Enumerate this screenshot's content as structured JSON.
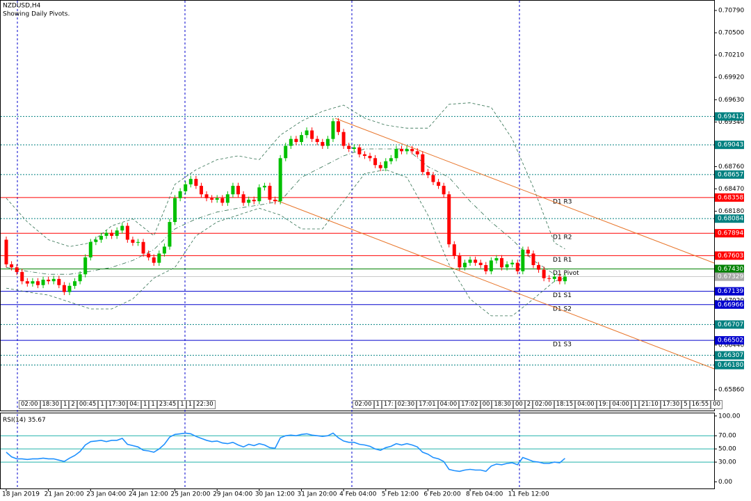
{
  "chart_data": [
    {
      "type": "candlestick",
      "title": "NZDUSD,H4",
      "subtitle": "Showing Daily Pivots.",
      "categories": [
        "18 Jan 2019",
        null,
        null,
        null,
        null,
        null,
        null,
        null,
        "21 Jan 20:00",
        null,
        null,
        null,
        null,
        null,
        null,
        null,
        "23 Jan 04:00",
        null,
        null,
        null,
        null,
        null,
        null,
        null,
        "24 Jan 12:00",
        null,
        null,
        null,
        null,
        null,
        null,
        null,
        "25 Jan 20:00",
        null,
        null,
        null,
        null,
        null,
        null,
        null,
        "29 Jan 04:00",
        null,
        null,
        null,
        null,
        null,
        null,
        null,
        "30 Jan 12:00",
        null,
        null,
        null,
        null,
        null,
        null,
        null,
        "31 Jan 20:00",
        null,
        null,
        null,
        null,
        null,
        null,
        null,
        "4 Feb 04:00",
        null,
        null,
        null,
        null,
        null,
        null,
        null,
        "5 Feb 12:00",
        null,
        null,
        null,
        null,
        null,
        null,
        null,
        "6 Feb 20:00",
        null,
        null,
        null,
        null,
        null,
        null,
        null,
        "8 Feb 04:00",
        null,
        null,
        null,
        null,
        null,
        null,
        null,
        "11 Feb 12:00",
        null,
        null,
        null,
        null,
        null,
        null,
        null,
        null,
        null,
        null
      ],
      "open": [
        0.6781,
        0.6749,
        0.6745,
        0.6739,
        0.6727,
        0.6724,
        0.6727,
        0.6722,
        0.6729,
        0.6727,
        0.673,
        0.6722,
        0.6713,
        0.6721,
        0.6727,
        0.6736,
        0.6758,
        0.6778,
        0.6781,
        0.6786,
        0.679,
        0.6786,
        0.6793,
        0.6799,
        0.6781,
        0.6777,
        0.6778,
        0.6763,
        0.6758,
        0.6751,
        0.6763,
        0.6772,
        0.6804,
        0.6835,
        0.6844,
        0.6853,
        0.686,
        0.6851,
        0.684,
        0.6835,
        0.6833,
        0.6835,
        0.6829,
        0.684,
        0.6851,
        0.684,
        0.6829,
        0.6833,
        0.6831,
        0.6849,
        0.6851,
        0.6833,
        0.6831,
        0.6887,
        0.6903,
        0.6912,
        0.6908,
        0.6917,
        0.6923,
        0.6912,
        0.6908,
        0.6903,
        0.6912,
        0.6935,
        0.6921,
        0.6903,
        0.6899,
        0.6901,
        0.6892,
        0.689,
        0.6887,
        0.6878,
        0.6874,
        0.6883,
        0.6887,
        0.6899,
        0.6896,
        0.6899,
        0.6896,
        0.6892,
        0.6869,
        0.6865,
        0.6856,
        0.6851,
        0.684,
        0.6775,
        0.676,
        0.6745,
        0.6751,
        0.6755,
        0.6751,
        0.6748,
        0.674,
        0.6754,
        0.6757,
        0.6745,
        0.6749,
        0.6751,
        0.674,
        0.6768,
        0.6763,
        0.6748,
        0.6742,
        0.6731,
        0.673,
        0.6733,
        0.6727
      ],
      "high": [
        0.6785,
        0.6753,
        0.6749,
        0.6743,
        0.6731,
        0.6731,
        0.6731,
        0.6733,
        0.6733,
        0.6734,
        0.6734,
        0.6726,
        0.6725,
        0.6731,
        0.674,
        0.6762,
        0.6782,
        0.6785,
        0.679,
        0.6794,
        0.6794,
        0.6797,
        0.6803,
        0.6803,
        0.6785,
        0.6782,
        0.6782,
        0.6767,
        0.6762,
        0.6767,
        0.6776,
        0.6808,
        0.6839,
        0.6848,
        0.6857,
        0.6864,
        0.6864,
        0.6855,
        0.6844,
        0.6839,
        0.6839,
        0.6839,
        0.6844,
        0.6855,
        0.6855,
        0.6844,
        0.6837,
        0.6837,
        0.6853,
        0.6855,
        0.6855,
        0.6837,
        0.6891,
        0.6907,
        0.6916,
        0.6916,
        0.6921,
        0.6927,
        0.6927,
        0.6916,
        0.6912,
        0.6916,
        0.6939,
        0.6939,
        0.6925,
        0.6907,
        0.6905,
        0.6905,
        0.6896,
        0.6894,
        0.6891,
        0.6882,
        0.6887,
        0.6891,
        0.6903,
        0.6903,
        0.6903,
        0.6903,
        0.69,
        0.6896,
        0.6873,
        0.6869,
        0.686,
        0.6855,
        0.6844,
        0.6779,
        0.6764,
        0.6755,
        0.6759,
        0.6759,
        0.6755,
        0.6752,
        0.6758,
        0.6761,
        0.6761,
        0.6753,
        0.6755,
        0.6755,
        0.6772,
        0.6772,
        0.6767,
        0.6752,
        0.6746,
        0.6735,
        0.6737,
        0.6737,
        0.6737
      ],
      "low": [
        0.6745,
        0.6741,
        0.6735,
        0.6723,
        0.672,
        0.672,
        0.6718,
        0.6718,
        0.6723,
        0.6723,
        0.6718,
        0.6709,
        0.6709,
        0.6717,
        0.6723,
        0.6732,
        0.6754,
        0.6774,
        0.6777,
        0.6782,
        0.6782,
        0.6782,
        0.6789,
        0.6777,
        0.6773,
        0.6773,
        0.6759,
        0.6754,
        0.6747,
        0.6747,
        0.6759,
        0.6768,
        0.68,
        0.6831,
        0.684,
        0.6849,
        0.6847,
        0.6836,
        0.6831,
        0.6829,
        0.6829,
        0.6825,
        0.6825,
        0.6836,
        0.6836,
        0.6825,
        0.6825,
        0.6827,
        0.6827,
        0.6845,
        0.6829,
        0.6827,
        0.6827,
        0.6883,
        0.6899,
        0.6904,
        0.6904,
        0.6913,
        0.6908,
        0.6904,
        0.6899,
        0.6899,
        0.6908,
        0.6917,
        0.6899,
        0.6895,
        0.6895,
        0.6888,
        0.6886,
        0.6883,
        0.6874,
        0.687,
        0.687,
        0.6879,
        0.6883,
        0.6892,
        0.6892,
        0.6892,
        0.6888,
        0.6865,
        0.6861,
        0.6852,
        0.6847,
        0.6836,
        0.6771,
        0.6756,
        0.6741,
        0.6741,
        0.6747,
        0.6747,
        0.6744,
        0.6736,
        0.6736,
        0.675,
        0.6741,
        0.6741,
        0.6745,
        0.6736,
        0.6736,
        0.6759,
        0.6744,
        0.6738,
        0.6727,
        0.6726,
        0.6726,
        0.6723,
        0.6723
      ],
      "close": [
        0.6749,
        0.6745,
        0.6739,
        0.6727,
        0.6724,
        0.6727,
        0.6722,
        0.6729,
        0.6727,
        0.673,
        0.6722,
        0.6713,
        0.6721,
        0.6727,
        0.6736,
        0.6758,
        0.6778,
        0.6781,
        0.6786,
        0.679,
        0.6786,
        0.6793,
        0.6799,
        0.6781,
        0.6777,
        0.6778,
        0.6763,
        0.6758,
        0.6751,
        0.6763,
        0.6772,
        0.6804,
        0.6835,
        0.6844,
        0.6853,
        0.686,
        0.6851,
        0.684,
        0.6835,
        0.6833,
        0.6835,
        0.6829,
        0.684,
        0.6851,
        0.684,
        0.6829,
        0.6833,
        0.6831,
        0.6849,
        0.6851,
        0.6833,
        0.6831,
        0.6887,
        0.6903,
        0.6912,
        0.6908,
        0.6917,
        0.6923,
        0.6912,
        0.6908,
        0.6903,
        0.6912,
        0.6935,
        0.6921,
        0.6903,
        0.6899,
        0.6901,
        0.6892,
        0.689,
        0.6887,
        0.6878,
        0.6874,
        0.6883,
        0.6887,
        0.6899,
        0.6896,
        0.6899,
        0.6896,
        0.6892,
        0.6869,
        0.6865,
        0.6856,
        0.6851,
        0.684,
        0.6775,
        0.676,
        0.6745,
        0.6751,
        0.6755,
        0.6751,
        0.6748,
        0.674,
        0.6754,
        0.6757,
        0.6745,
        0.6749,
        0.6751,
        0.674,
        0.6768,
        0.6763,
        0.6748,
        0.6742,
        0.6731,
        0.673,
        0.6733,
        0.6727,
        0.6733
      ],
      "up_color": "#00c000",
      "down_color": "#ff0000",
      "ylim": [
        0.65589,
        0.70908
      ],
      "yticks": [
        {
          "value": 0.7079,
          "label": "0.70790"
        },
        {
          "value": 0.705,
          "label": "0.70500"
        },
        {
          "value": 0.7021,
          "label": "0.70210"
        },
        {
          "value": 0.6992,
          "label": "0.69920"
        },
        {
          "value": 0.6963,
          "label": "0.69630"
        },
        {
          "value": 0.6934,
          "label": "0.69340"
        },
        {
          "value": 0.6876,
          "label": "0.68760"
        },
        {
          "value": 0.6847,
          "label": "0.68470"
        },
        {
          "value": 0.6818,
          "label": "0.68180"
        },
        {
          "value": 0.6702,
          "label": "0.67020"
        },
        {
          "value": 0.6644,
          "label": "0.66440"
        },
        {
          "value": 0.6586,
          "label": "0.65860"
        }
      ],
      "bands": [
        {
          "color": "#2f6f4f",
          "style": "dashed",
          "x": [
            0,
            4,
            8,
            12,
            16,
            20,
            24,
            28,
            32,
            36,
            40,
            44,
            48,
            52,
            56,
            60,
            64,
            68,
            72,
            76,
            80,
            84,
            88,
            92,
            96,
            100,
            104,
            106
          ],
          "values": [
            0.6835,
            0.6804,
            0.6781,
            0.6772,
            0.6777,
            0.6799,
            0.6808,
            0.6786,
            0.6853,
            0.6872,
            0.6885,
            0.689,
            0.6885,
            0.6917,
            0.6935,
            0.6948,
            0.6956,
            0.6939,
            0.693,
            0.6926,
            0.6926,
            0.6957,
            0.6959,
            0.6953,
            0.6912,
            0.6849,
            0.6777,
            0.6769
          ]
        },
        {
          "color": "#2f6f4f",
          "style": "dashdot",
          "x": [
            0,
            4,
            8,
            12,
            16,
            20,
            24,
            28,
            32,
            36,
            40,
            44,
            48,
            52,
            56,
            60,
            64,
            68,
            72,
            76,
            80,
            84,
            88,
            92,
            96,
            100,
            104,
            106
          ],
          "values": [
            0.6745,
            0.674,
            0.6736,
            0.6736,
            0.674,
            0.6745,
            0.6754,
            0.6768,
            0.6795,
            0.6808,
            0.6817,
            0.6822,
            0.6826,
            0.6831,
            0.6862,
            0.6876,
            0.689,
            0.6899,
            0.6899,
            0.6899,
            0.6876,
            0.6862,
            0.6831,
            0.6804,
            0.6781,
            0.6754,
            0.6736,
            0.6734
          ]
        },
        {
          "color": "#2f6f4f",
          "style": "dashed",
          "x": [
            0,
            4,
            8,
            12,
            16,
            20,
            24,
            28,
            32,
            36,
            40,
            44,
            48,
            52,
            56,
            60,
            64,
            68,
            72,
            76,
            80,
            84,
            88,
            92,
            96,
            100,
            104,
            106
          ],
          "values": [
            0.6718,
            0.6713,
            0.6709,
            0.67,
            0.6691,
            0.6691,
            0.6704,
            0.6731,
            0.6745,
            0.6786,
            0.6804,
            0.6813,
            0.6822,
            0.6813,
            0.6795,
            0.6795,
            0.6831,
            0.6867,
            0.6872,
            0.6862,
            0.6813,
            0.6749,
            0.6704,
            0.6682,
            0.6682,
            0.6704,
            0.6727,
            0.6731
          ]
        }
      ],
      "levels": [
        {
          "value": 0.69412,
          "color": "#008080"
        },
        {
          "value": 0.69043,
          "color": "#008080"
        },
        {
          "value": 0.68657,
          "color": "#008080"
        },
        {
          "value": 0.68084,
          "color": "#008080"
        },
        {
          "value": 0.66707,
          "color": "#008080"
        },
        {
          "value": 0.66307,
          "color": "#008080"
        },
        {
          "value": 0.6618,
          "label": "0.66180",
          "color": "#008080"
        }
      ],
      "pivots": [
        {
          "name": "D1 R3",
          "value": 0.68358,
          "color": "#ff0000"
        },
        {
          "name": "D1 R2",
          "value": 0.67894,
          "color": "#ff0000"
        },
        {
          "name": "D1 R1",
          "value": 0.67603,
          "color": "#ff0000"
        },
        {
          "name": "D1 Pivot",
          "value": 0.6743,
          "label": "0.67430",
          "color": "#008000"
        },
        {
          "name": "D1 S1",
          "value": 0.67139,
          "color": "#0000cd"
        },
        {
          "name": "D1 S2",
          "value": 0.66966,
          "color": "#0000cd"
        },
        {
          "name": "D1 S3",
          "value": 0.66502,
          "color": "#0000cd"
        }
      ],
      "current": {
        "value": 0.67329,
        "color": "#a9a9a9"
      },
      "time_tags_left": [
        "02:00",
        "18:30",
        "1",
        "2",
        "00:45",
        "1",
        "17:30",
        "04:",
        "1",
        "1",
        "23:45",
        "1",
        "1",
        "22:30"
      ],
      "time_tags_right": [
        "02:00",
        "1",
        "17:",
        "02:30",
        "17:01",
        "04:00",
        "17:02",
        "00",
        "18:30",
        "00",
        "2",
        "02:00",
        "18:15",
        "04:00",
        "19:",
        "04:00",
        "1",
        "21:10",
        "17:30",
        "5",
        "16:55",
        "00"
      ]
    },
    {
      "type": "line",
      "series": [
        {
          "name": "RSI(14)",
          "color": "#1e90ff",
          "values": [
            45,
            38,
            35,
            35,
            34,
            35,
            35,
            36,
            35,
            35,
            33,
            31,
            36,
            40,
            46,
            56,
            61,
            62,
            63,
            61,
            63,
            63,
            66,
            57,
            55,
            53,
            48,
            47,
            45,
            50,
            57,
            68,
            72,
            73,
            74,
            73,
            69,
            66,
            63,
            61,
            62,
            59,
            58,
            60,
            56,
            53,
            57,
            55,
            58,
            56,
            52,
            51,
            67,
            70,
            71,
            70,
            72,
            73,
            71,
            70,
            69,
            70,
            74,
            67,
            62,
            60,
            60,
            57,
            56,
            54,
            50,
            48,
            52,
            54,
            58,
            56,
            58,
            56,
            53,
            45,
            42,
            37,
            35,
            31,
            19,
            17,
            16,
            18,
            19,
            18,
            18,
            16,
            24,
            27,
            26,
            28,
            29,
            26,
            37,
            34,
            31,
            30,
            28,
            28,
            30,
            29,
            35.67
          ]
        }
      ],
      "ylim": [
        -10,
        104
      ],
      "yticks": [
        {
          "value": 100,
          "label": "100.00"
        },
        {
          "value": 70,
          "label": "70.00"
        },
        {
          "value": 50,
          "label": "50.00"
        },
        {
          "value": 30,
          "label": "30.00"
        },
        {
          "value": 0,
          "label": "0.00"
        }
      ],
      "levels": [
        70,
        50,
        30
      ],
      "level_color": "#20b2aa"
    }
  ]
}
